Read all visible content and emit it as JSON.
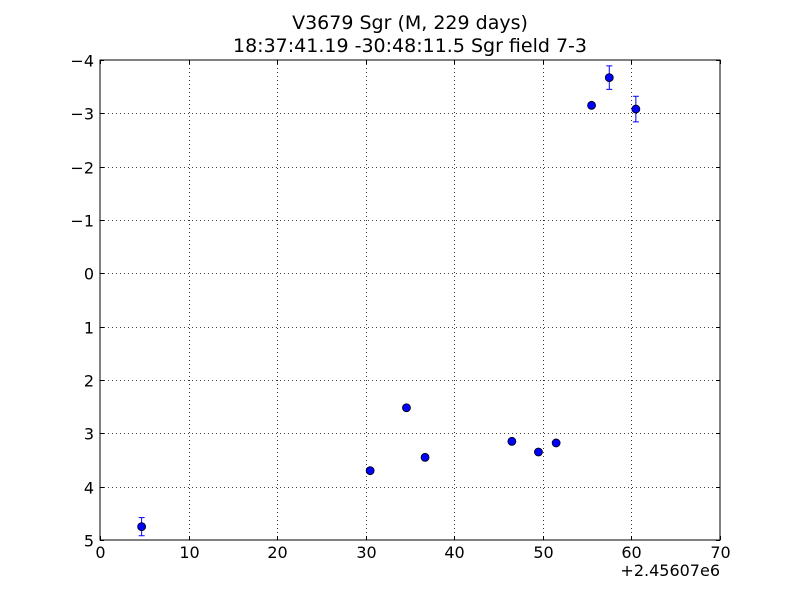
{
  "chart_data": {
    "type": "scatter",
    "title": "V3679 Sgr  (M, 229 days)",
    "subtitle": "18:37:41.19 -30:48:11.5 Sgr field 7-3",
    "xlabel": "",
    "ylabel": "",
    "x_offset_label": "+2.45607e6",
    "xlim": [
      0,
      70
    ],
    "ylim": [
      5,
      -4
    ],
    "y_inverted": true,
    "x_ticks": [
      0,
      10,
      20,
      30,
      40,
      50,
      60,
      70
    ],
    "x_tick_labels": [
      "0",
      "10",
      "20",
      "30",
      "40",
      "50",
      "60",
      "70"
    ],
    "y_ticks": [
      -4,
      -3,
      -2,
      -1,
      0,
      1,
      2,
      3,
      4,
      5
    ],
    "y_tick_labels": [
      "−4",
      "−3",
      "−2",
      "−1",
      "0",
      "1",
      "2",
      "3",
      "4",
      "5"
    ],
    "grid": true,
    "grid_style": "dotted",
    "marker_color": "#0000ff",
    "errorbar_color": "#0000ff",
    "series": [
      {
        "points": [
          {
            "x": 4.7,
            "y": 4.75,
            "err": 0.17
          },
          {
            "x": 30.5,
            "y": 3.7,
            "err": 0.0
          },
          {
            "x": 34.6,
            "y": 2.52,
            "err": 0.0
          },
          {
            "x": 36.7,
            "y": 3.45,
            "err": 0.0
          },
          {
            "x": 46.5,
            "y": 3.15,
            "err": 0.0
          },
          {
            "x": 49.5,
            "y": 3.35,
            "err": 0.0
          },
          {
            "x": 51.5,
            "y": 3.18,
            "err": 0.0
          },
          {
            "x": 55.5,
            "y": -3.15,
            "err": 0.05
          },
          {
            "x": 57.5,
            "y": -3.67,
            "err": 0.22
          },
          {
            "x": 60.5,
            "y": -3.08,
            "err": 0.24
          }
        ]
      }
    ]
  }
}
